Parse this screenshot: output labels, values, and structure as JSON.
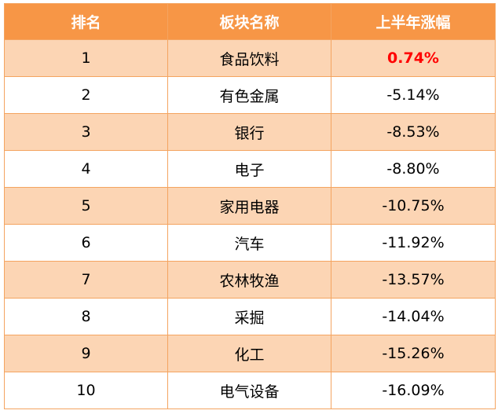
{
  "table": {
    "headers": [
      "排名",
      "板块名称",
      "上半年涨幅"
    ],
    "rows": [
      {
        "rank": "1",
        "sector": "食品饮料",
        "change": "0.74%",
        "highlight": true
      },
      {
        "rank": "2",
        "sector": "有色金属",
        "change": "-5.14%"
      },
      {
        "rank": "3",
        "sector": "银行",
        "change": "-8.53%"
      },
      {
        "rank": "4",
        "sector": "电子",
        "change": "-8.80%"
      },
      {
        "rank": "5",
        "sector": "家用电器",
        "change": "-10.75%"
      },
      {
        "rank": "6",
        "sector": "汽车",
        "change": "-11.92%"
      },
      {
        "rank": "7",
        "sector": "农林牧渔",
        "change": "-13.57%"
      },
      {
        "rank": "8",
        "sector": "采掘",
        "change": "-14.04%"
      },
      {
        "rank": "9",
        "sector": "化工",
        "change": "-15.26%"
      },
      {
        "rank": "10",
        "sector": "电气设备",
        "change": "-16.09%"
      }
    ]
  },
  "colors": {
    "header_bg": "#f79646",
    "band_bg": "#fcd5b4",
    "border": "#f4a460",
    "highlight_text": "#ff0000"
  }
}
